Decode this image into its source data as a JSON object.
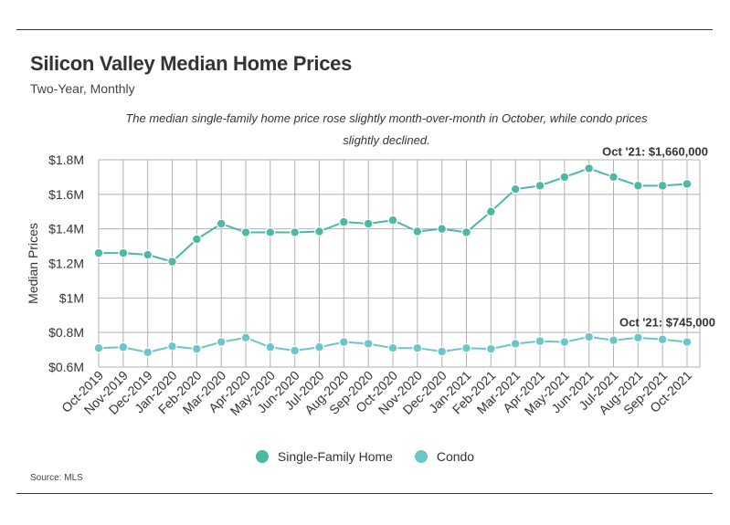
{
  "title": "Silicon Valley Median Home Prices",
  "subtitle": "Two-Year, Monthly",
  "description": "The median single-family home price rose slightly month-over-month in October, while condo prices slightly declined.",
  "source": "Source:  MLS",
  "colors": {
    "single_family": "#4db8a6",
    "condo": "#6cc5c9",
    "grid": "#b0b0b0",
    "text": "#333333"
  },
  "chart_data": {
    "type": "line",
    "title": "Silicon Valley Median Home Prices",
    "subtitle": "Two-Year, Monthly",
    "ylabel": "Median Prices",
    "xlabel": "",
    "ylim": [
      600000,
      1800000
    ],
    "yticks": [
      600000,
      800000,
      1000000,
      1200000,
      1400000,
      1600000,
      1800000
    ],
    "ytick_labels": [
      "$0.6M",
      "$0.8M",
      "$1M",
      "$1.2M",
      "$1.4M",
      "$1.6M",
      "$1.8M"
    ],
    "grid": true,
    "legend_position": "bottom",
    "categories": [
      "Oct-2019",
      "Nov-2019",
      "Dec-2019",
      "Jan-2020",
      "Feb-2020",
      "Mar-2020",
      "Apr-2020",
      "May-2020",
      "Jun-2020",
      "Jul-2020",
      "Aug-2020",
      "Sep-2020",
      "Oct-2020",
      "Nov-2020",
      "Dec-2020",
      "Jan-2021",
      "Feb-2021",
      "Mar-2021",
      "Apr-2021",
      "May-2021",
      "Jun-2021",
      "Jul-2021",
      "Aug-2021",
      "Sep-2021",
      "Oct-2021"
    ],
    "series": [
      {
        "name": "Single-Family Home",
        "color": "#4db8a6",
        "values": [
          1260000,
          1260000,
          1250000,
          1210000,
          1340000,
          1430000,
          1380000,
          1380000,
          1380000,
          1385000,
          1440000,
          1430000,
          1450000,
          1385000,
          1400000,
          1380000,
          1500000,
          1630000,
          1650000,
          1700000,
          1750000,
          1700000,
          1650000,
          1650000,
          1660000
        ],
        "annotation": "Oct '21: $1,660,000"
      },
      {
        "name": "Condo",
        "color": "#6cc5c9",
        "values": [
          710000,
          715000,
          685000,
          720000,
          705000,
          745000,
          770000,
          715000,
          695000,
          715000,
          745000,
          735000,
          710000,
          710000,
          690000,
          710000,
          705000,
          735000,
          750000,
          745000,
          775000,
          755000,
          770000,
          760000,
          745000
        ],
        "annotation": "Oct '21: $745,000"
      }
    ]
  }
}
